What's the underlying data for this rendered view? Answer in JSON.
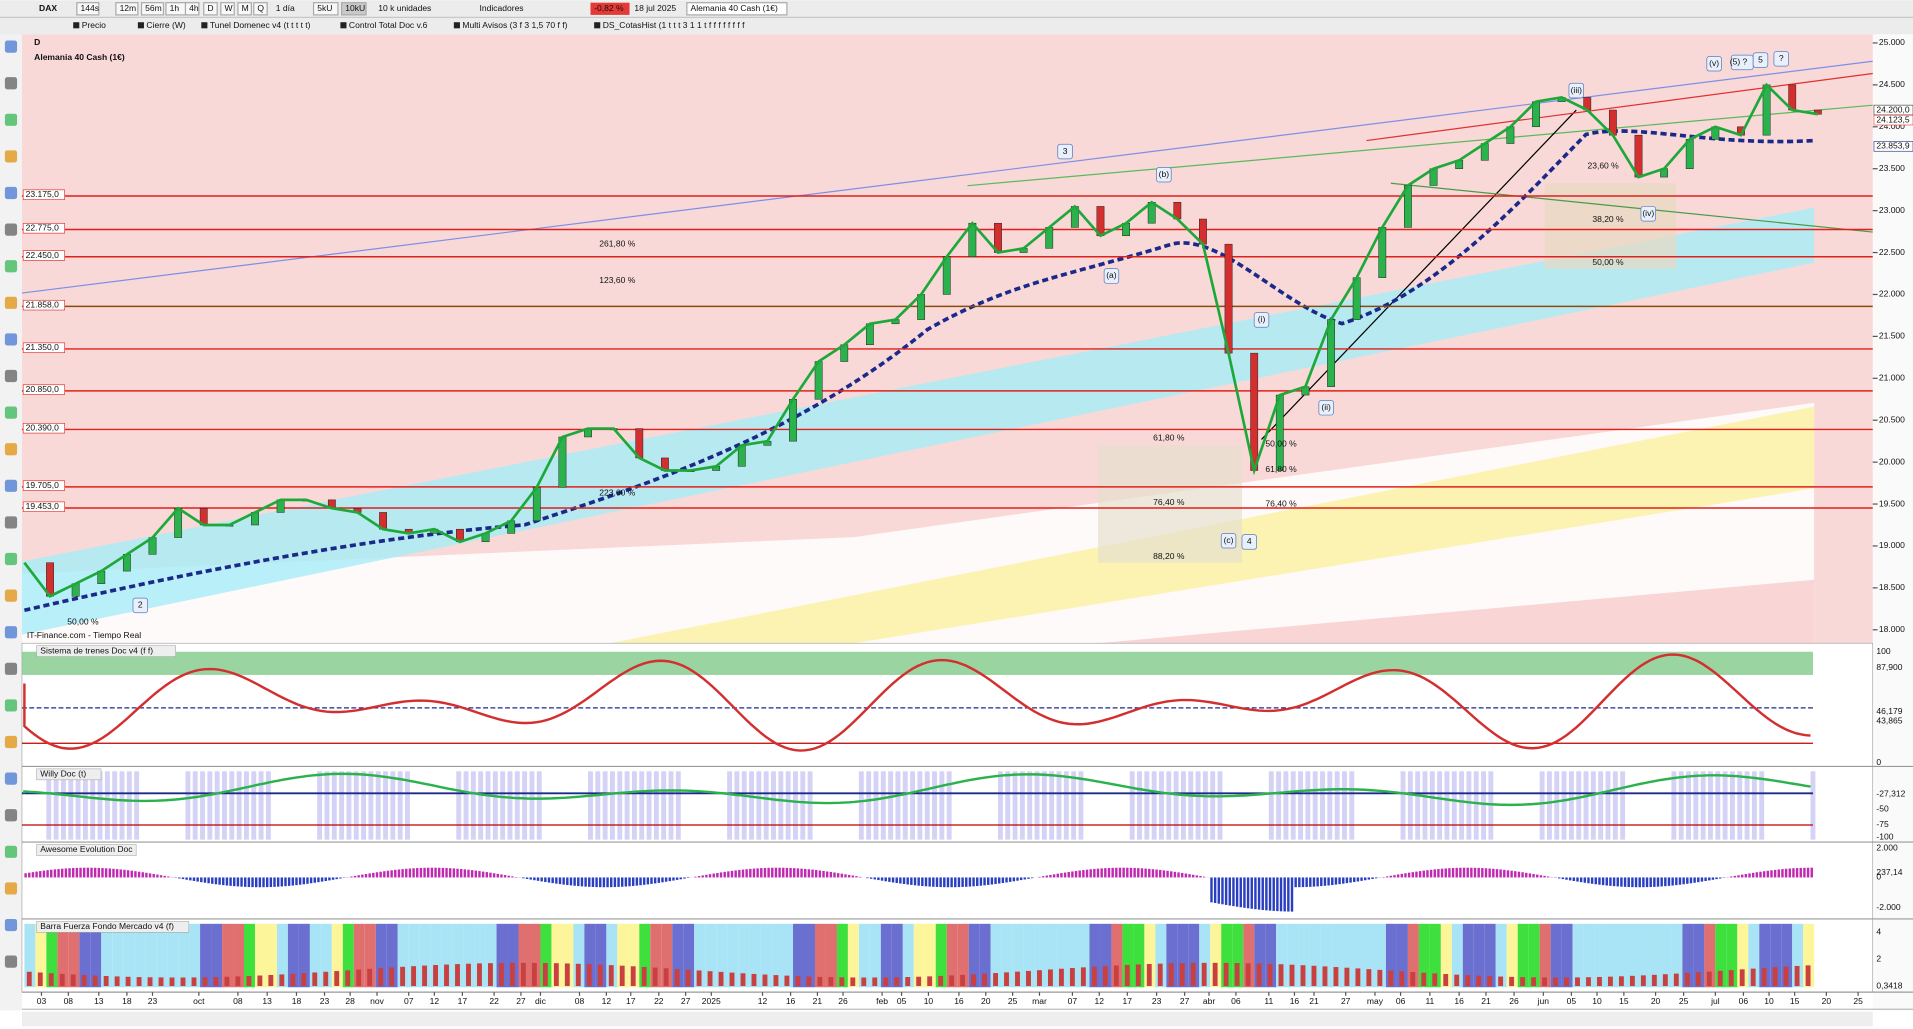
{
  "toolbar": {
    "symbol": "DAX",
    "timeframes": [
      "144s",
      "12m",
      "56m",
      "1h",
      "4h",
      "D",
      "W",
      "M",
      "Q"
    ],
    "period": "1 día",
    "units": [
      "5kU",
      "10kU"
    ],
    "units_label": "10 k unidades",
    "indicators": "Indicadores",
    "change": "-0,82 %",
    "date": "18 jul 2025",
    "instrument": "Alemania 40 Cash (1€)"
  },
  "legend_bar": [
    "Precio",
    "Cierre (W)",
    "Tunel Domenec v4 (t t t t t)",
    "Control Total Doc v.6",
    "Multi Avisos (3 f 3 1,5 70 f f)",
    "DS_CotasHist (1 t t t 3 1 1 t f f f f f f f f"
  ],
  "main_chart": {
    "timeframe": "D",
    "title": "Alemania 40 Cash (1€)",
    "source": "IT-Finance.com - Tiempo Real",
    "ylim": [
      18000,
      25000
    ],
    "yticks": [
      {
        "value": 25000,
        "label": "25.000"
      },
      {
        "value": 24500,
        "label": "24.500"
      },
      {
        "value": 24000,
        "label": "24.000"
      },
      {
        "value": 23500,
        "label": "23.500"
      },
      {
        "value": 23000,
        "label": "23.000"
      },
      {
        "value": 22500,
        "label": "22.500"
      },
      {
        "value": 22000,
        "label": "22.000"
      },
      {
        "value": 21500,
        "label": "21.500"
      },
      {
        "value": 21000,
        "label": "21.000"
      },
      {
        "value": 20500,
        "label": "20.500"
      },
      {
        "value": 20000,
        "label": "20.000"
      },
      {
        "value": 19500,
        "label": "19.500"
      },
      {
        "value": 19000,
        "label": "19.000"
      },
      {
        "value": 18500,
        "label": "18.500"
      },
      {
        "value": 18000,
        "label": "18.000"
      }
    ],
    "levels": [
      {
        "value": 23175,
        "label": "23.175,0"
      },
      {
        "value": 22775,
        "label": "22.775,0"
      },
      {
        "value": 22450,
        "label": "22.450,0"
      },
      {
        "value": 21858,
        "label": "21.858,0"
      },
      {
        "value": 21350,
        "label": "21.350,0"
      },
      {
        "value": 20850,
        "label": "20.850,0"
      },
      {
        "value": 20390,
        "label": "20.390,0"
      },
      {
        "value": 19705,
        "label": "19.705,0"
      },
      {
        "value": 19453,
        "label": "19.453,0"
      }
    ],
    "price_labels": [
      {
        "value": 24200,
        "label": "24.200,0"
      },
      {
        "value": 24123.5,
        "label": "24.123,5"
      },
      {
        "value": 23853.9,
        "label": "23.853,9"
      }
    ],
    "closes": [
      18800,
      18400,
      18550,
      18700,
      18900,
      19100,
      19450,
      19250,
      19250,
      19400,
      19550,
      19550,
      19450,
      19400,
      19200,
      19150,
      19200,
      19050,
      19150,
      19300,
      19700,
      20300,
      20400,
      20400,
      20050,
      19900,
      19900,
      19950,
      20200,
      20250,
      20750,
      21200,
      21400,
      21650,
      21700,
      22000,
      22450,
      22850,
      22500,
      22550,
      22800,
      23050,
      22700,
      22850,
      23100,
      22900,
      22600,
      21300,
      19900,
      20800,
      20900,
      21700,
      22200,
      22800,
      23300,
      23500,
      23600,
      23800,
      24000,
      24300,
      24350,
      24200,
      23900,
      23400,
      23500,
      23850,
      24000,
      23900,
      24500,
      24200,
      24150
    ],
    "wave_labels": [
      "3",
      "(b)",
      "(a)",
      "(i)",
      "(ii)",
      "(c)",
      "4",
      "2",
      "(iii)",
      "(iv)",
      "(v)",
      "(5) ?",
      "5",
      "?"
    ],
    "fib_labels": [
      "261,80 %",
      "123,60 %",
      "223,60 %",
      "61,80 %",
      "61,80 %",
      "76,40 %",
      "76,40 %",
      "88,20 %",
      "38,20 %",
      "50,00 %",
      "23,60 %",
      "50,00 %",
      "50,00 %"
    ]
  },
  "panels": [
    {
      "title": "Sistema de trenes Doc v4 (f f)",
      "axis_labels": [
        "100",
        "87,900",
        "46,179",
        "43,865",
        "0"
      ]
    },
    {
      "title": "Willy Doc (t)",
      "axis_labels": [
        "-27,312",
        "-50",
        "-75",
        "-100"
      ]
    },
    {
      "title": "Awesome Evolution Doc",
      "axis_labels": [
        "2.000",
        "237,14",
        "0",
        "-2.000"
      ]
    },
    {
      "title": "Barra Fuerza Fondo Mercado v4 (f)",
      "axis_labels": [
        "4",
        "2",
        "0,3418"
      ]
    }
  ],
  "date_axis": [
    "03",
    "08",
    "13",
    "18",
    "23",
    "oct",
    "08",
    "13",
    "18",
    "23",
    "28",
    "nov",
    "07",
    "12",
    "17",
    "22",
    "27",
    "dic",
    "08",
    "12",
    "17",
    "22",
    "27",
    "2025",
    "12",
    "16",
    "21",
    "26",
    "feb",
    "05",
    "10",
    "16",
    "20",
    "25",
    "mar",
    "07",
    "12",
    "17",
    "23",
    "27",
    "abr",
    "06",
    "11",
    "16",
    "21",
    "27",
    "may",
    "06",
    "11",
    "16",
    "21",
    "26",
    "jun",
    "05",
    "10",
    "15",
    "20",
    "25",
    "jul",
    "06",
    "10",
    "15",
    "20",
    "25"
  ]
}
